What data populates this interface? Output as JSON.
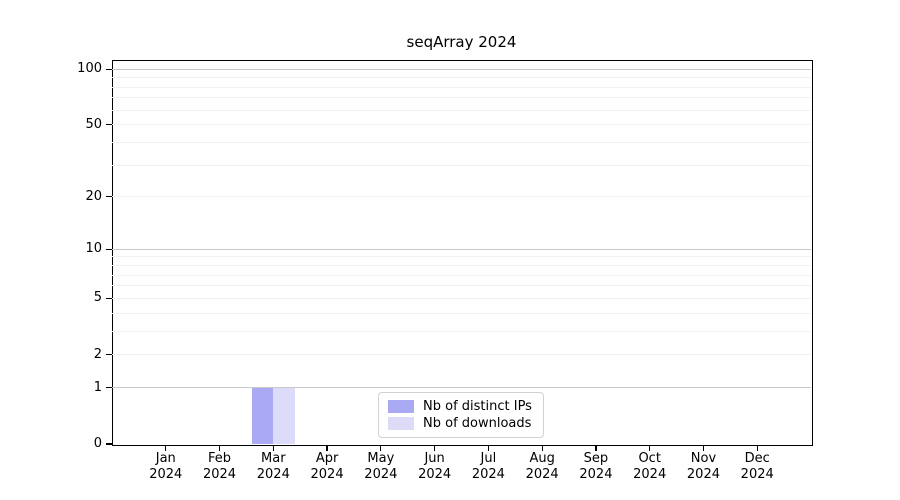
{
  "chart_data": {
    "type": "bar",
    "title": "seqArray 2024",
    "categories": [
      {
        "month": "Jan",
        "year": "2024"
      },
      {
        "month": "Feb",
        "year": "2024"
      },
      {
        "month": "Mar",
        "year": "2024"
      },
      {
        "month": "Apr",
        "year": "2024"
      },
      {
        "month": "May",
        "year": "2024"
      },
      {
        "month": "Jun",
        "year": "2024"
      },
      {
        "month": "Jul",
        "year": "2024"
      },
      {
        "month": "Aug",
        "year": "2024"
      },
      {
        "month": "Sep",
        "year": "2024"
      },
      {
        "month": "Oct",
        "year": "2024"
      },
      {
        "month": "Nov",
        "year": "2024"
      },
      {
        "month": "Dec",
        "year": "2024"
      }
    ],
    "series": [
      {
        "name": "Nb of distinct IPs",
        "color": "#a9a9f4",
        "values": [
          0,
          0,
          1,
          0,
          0,
          0,
          0,
          0,
          0,
          0,
          0,
          0
        ]
      },
      {
        "name": "Nb of downloads",
        "color": "#dcdcf8",
        "values": [
          0,
          0,
          1,
          0,
          0,
          0,
          0,
          0,
          0,
          0,
          0,
          0
        ]
      }
    ],
    "xlabel": "",
    "ylabel": "",
    "y_axis": {
      "scale": "log1p",
      "tick_labels": [
        "0",
        "1",
        "2",
        "5",
        "10",
        "20",
        "50",
        "100"
      ],
      "tick_values": [
        0,
        1,
        2,
        5,
        10,
        20,
        50,
        100
      ],
      "major_gridlines": [
        1,
        10,
        100
      ],
      "minor_gridlines": [
        2,
        3,
        4,
        5,
        6,
        7,
        8,
        9,
        20,
        30,
        40,
        50,
        60,
        70,
        80,
        90
      ],
      "top_value": 112,
      "bottom_value": 0
    },
    "grid": "horizontal-only",
    "legend_position": "bottom-center"
  },
  "colors": {
    "background": "#ffffff",
    "spine": "#000000",
    "major_grid": "#c8c8c8",
    "minor_grid": "#f0f0f0",
    "legend_border": "#d2d2d2",
    "text": "#000000"
  }
}
